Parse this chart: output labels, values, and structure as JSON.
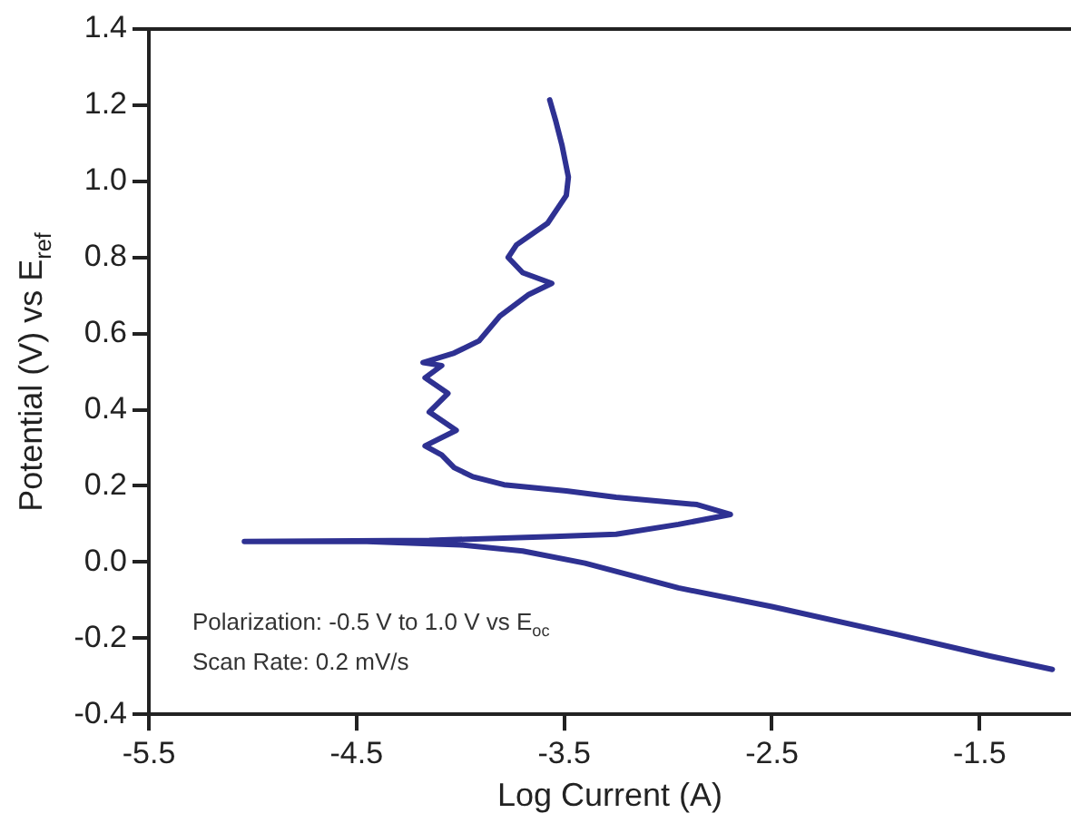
{
  "chart_data": {
    "type": "line",
    "xlabel": "Log Current (A)",
    "ylabel": "Potential (V) vs E$_{ref}$",
    "annotations": [
      "Polarization: -0.5 V to 1.0 V vs E$_{oc}$",
      "Scan Rate: 0.2 mV/s"
    ],
    "xlim": [
      -5.5,
      -1.06
    ],
    "xticks": [
      -5.5,
      -4.5,
      -3.5,
      -2.5,
      -1.5
    ],
    "ylim": [
      -0.4,
      1.4
    ],
    "yticks": [
      -0.4,
      -0.2,
      {
        "value": 0,
        "label": "0.0"
      },
      0.2,
      0.4,
      0.6,
      0.8,
      {
        "value": 1,
        "label": "1.0"
      },
      1.2,
      1.4
    ],
    "grid": false,
    "legend": false,
    "marker": "none",
    "line_style": "solid",
    "series": [
      {
        "color": "#2e3192",
        "x": [
          -1.15,
          -1.45,
          -1.9,
          -2.5,
          -2.95,
          -3.4,
          -3.7,
          -4.0,
          -4.45,
          -5.04,
          -4.15,
          -3.55,
          -3.25,
          -2.95,
          -2.7,
          -2.86,
          -3.25,
          -3.49,
          -3.79,
          -3.94,
          -4.03,
          -4.09,
          -4.17,
          -4.02,
          -4.15,
          -4.06,
          -4.17,
          -4.09,
          -4.18,
          -4.03,
          -3.91,
          -3.81,
          -3.67,
          -3.56,
          -3.7,
          -3.77,
          -3.73,
          -3.58,
          -3.49,
          -3.48,
          -3.51,
          -3.54,
          -3.57
        ],
        "values": [
          -0.282,
          -0.247,
          -0.19,
          -0.117,
          -0.068,
          -0.003,
          0.029,
          0.045,
          0.054,
          0.054,
          0.057,
          0.067,
          0.073,
          0.099,
          0.125,
          0.151,
          0.17,
          0.187,
          0.203,
          0.224,
          0.248,
          0.281,
          0.305,
          0.346,
          0.394,
          0.443,
          0.484,
          0.516,
          0.524,
          0.549,
          0.581,
          0.646,
          0.703,
          0.732,
          0.76,
          0.8,
          0.833,
          0.89,
          0.963,
          1.011,
          1.093,
          1.157,
          1.214
        ]
      }
    ]
  }
}
